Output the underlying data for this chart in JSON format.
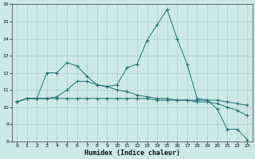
{
  "xlabel": "Humidex (Indice chaleur)",
  "background_color": "#cce8e8",
  "grid_color": "#aacccc",
  "line_color": "#1a7070",
  "x_values": [
    0,
    1,
    2,
    3,
    4,
    5,
    6,
    7,
    8,
    9,
    10,
    11,
    12,
    13,
    14,
    15,
    16,
    17,
    18,
    19,
    20,
    21,
    22,
    23
  ],
  "line1": [
    10.3,
    10.5,
    10.5,
    12.0,
    12.0,
    12.6,
    12.4,
    11.8,
    11.3,
    11.2,
    11.3,
    12.3,
    12.5,
    13.9,
    14.8,
    15.7,
    14.0,
    12.5,
    10.5,
    10.4,
    9.9,
    8.7,
    8.7,
    8.1
  ],
  "line2": [
    10.3,
    10.5,
    10.5,
    10.5,
    10.5,
    10.5,
    10.5,
    10.5,
    10.5,
    10.5,
    10.5,
    10.5,
    10.5,
    10.5,
    10.4,
    10.4,
    10.4,
    10.4,
    10.4,
    10.4,
    10.4,
    10.3,
    10.2,
    10.1
  ],
  "line3": [
    10.3,
    10.5,
    10.5,
    10.5,
    10.6,
    11.0,
    11.5,
    11.5,
    11.3,
    11.2,
    11.0,
    10.9,
    10.7,
    10.6,
    10.5,
    10.5,
    10.4,
    10.4,
    10.3,
    10.3,
    10.2,
    10.0,
    9.8,
    9.5
  ],
  "ylim": [
    8,
    16
  ],
  "yticks": [
    8,
    9,
    10,
    11,
    12,
    13,
    14,
    15,
    16
  ],
  "xlim": [
    -0.5,
    23.5
  ]
}
